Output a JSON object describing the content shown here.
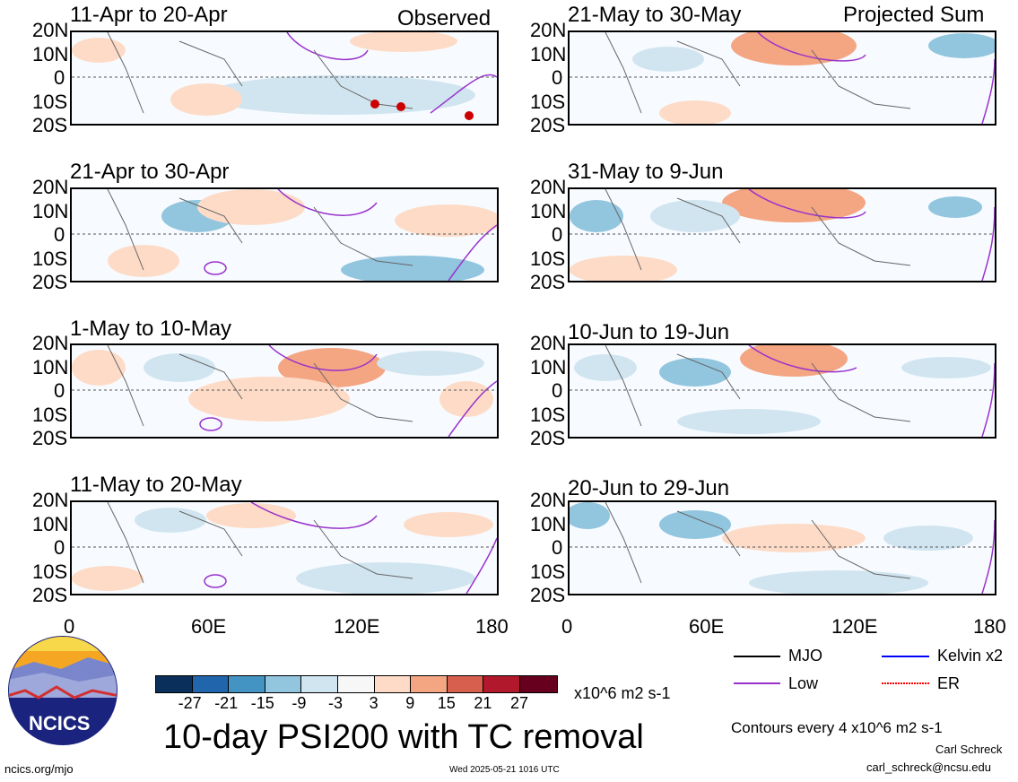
{
  "panels_left": [
    {
      "title": "11-Apr to 20-Apr",
      "tag": "Observed"
    },
    {
      "title": "21-Apr to 30-Apr",
      "tag": ""
    },
    {
      "title": "1-May to 10-May",
      "tag": ""
    },
    {
      "title": "11-May to 20-May",
      "tag": ""
    }
  ],
  "panels_right": [
    {
      "title": "21-May to 30-May",
      "tag": "Projected Sum"
    },
    {
      "title": "31-May to 9-Jun",
      "tag": ""
    },
    {
      "title": "10-Jun to 19-Jun",
      "tag": ""
    },
    {
      "title": "20-Jun to 29-Jun",
      "tag": ""
    }
  ],
  "lat_labels": [
    "20N",
    "10N",
    "0",
    "10S",
    "20S"
  ],
  "lon_labels": [
    "0",
    "60E",
    "120E",
    "180"
  ],
  "colorbar": {
    "ticks": [
      "-27",
      "-21",
      "-15",
      "-9",
      "-3",
      "3",
      "9",
      "15",
      "21",
      "27"
    ],
    "colors": [
      "#0b2f5b",
      "#2166ac",
      "#4393c3",
      "#92c5de",
      "#d1e5f0",
      "#f7f7f7",
      "#fddbc7",
      "#f4a582",
      "#d6604d",
      "#b2182b",
      "#67001f"
    ],
    "units": "x10^6 m2 s-1"
  },
  "legend": {
    "mjo": "MJO",
    "kelvin": "Kelvin x2",
    "low": "Low",
    "er": "ER",
    "colors": {
      "mjo": "#000000",
      "kelvin": "#0000ff",
      "low": "#9932cc",
      "er": "#ff0000"
    }
  },
  "main_title": "10-day PSI200 with TC removal",
  "contour_note": "Contours every 4 x10^6 m2 s-1",
  "author": "Carl Schreck",
  "email": "carl_schreck@ncsu.edu",
  "site": "ncics.org/mjo",
  "timestamp": "Wed 2025-05-21 1016 UTC",
  "logo_text": "NCICS",
  "tc_markers": [
    "5",
    "29",
    "1"
  ]
}
